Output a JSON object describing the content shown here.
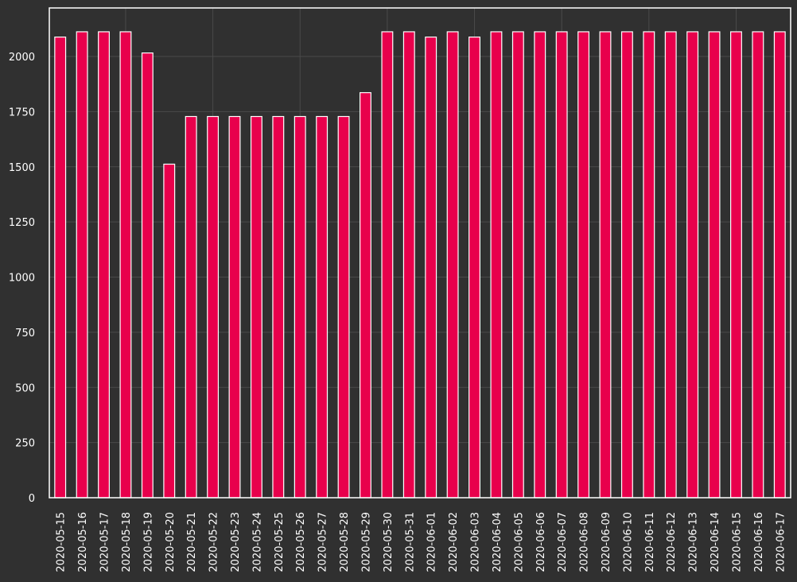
{
  "chart_data": {
    "type": "bar",
    "title": "",
    "xlabel": "",
    "ylabel": "",
    "ylim": [
      0,
      2220
    ],
    "yticks": [
      0,
      250,
      500,
      750,
      1000,
      1250,
      1500,
      1750,
      2000
    ],
    "grid": true,
    "legend": "none",
    "categories": [
      "2020-05-15",
      "2020-05-16",
      "2020-05-17",
      "2020-05-18",
      "2020-05-19",
      "2020-05-20",
      "2020-05-21",
      "2020-05-22",
      "2020-05-23",
      "2020-05-24",
      "2020-05-25",
      "2020-05-26",
      "2020-05-27",
      "2020-05-28",
      "2020-05-29",
      "2020-05-30",
      "2020-05-31",
      "2020-06-01",
      "2020-06-02",
      "2020-06-03",
      "2020-06-04",
      "2020-06-05",
      "2020-06-06",
      "2020-06-07",
      "2020-06-08",
      "2020-06-09",
      "2020-06-10",
      "2020-06-11",
      "2020-06-12",
      "2020-06-13",
      "2020-06-14",
      "2020-06-15",
      "2020-06-16",
      "2020-06-17"
    ],
    "values": [
      2088,
      2112,
      2112,
      2112,
      2016,
      1512,
      1728,
      1728,
      1728,
      1728,
      1728,
      1728,
      1728,
      1728,
      1836,
      2112,
      2112,
      2088,
      2112,
      2088,
      2112,
      2112,
      2112,
      2112,
      2112,
      2112,
      2112,
      2112,
      2112,
      2112,
      2112,
      2112,
      2112,
      2112
    ],
    "colors": {
      "bar": "#e8004c",
      "bar_edge": "#ffffff",
      "background": "#303030",
      "grid": "#4a4a4a",
      "axis": "#ffffff",
      "text": "#ffffff"
    }
  }
}
